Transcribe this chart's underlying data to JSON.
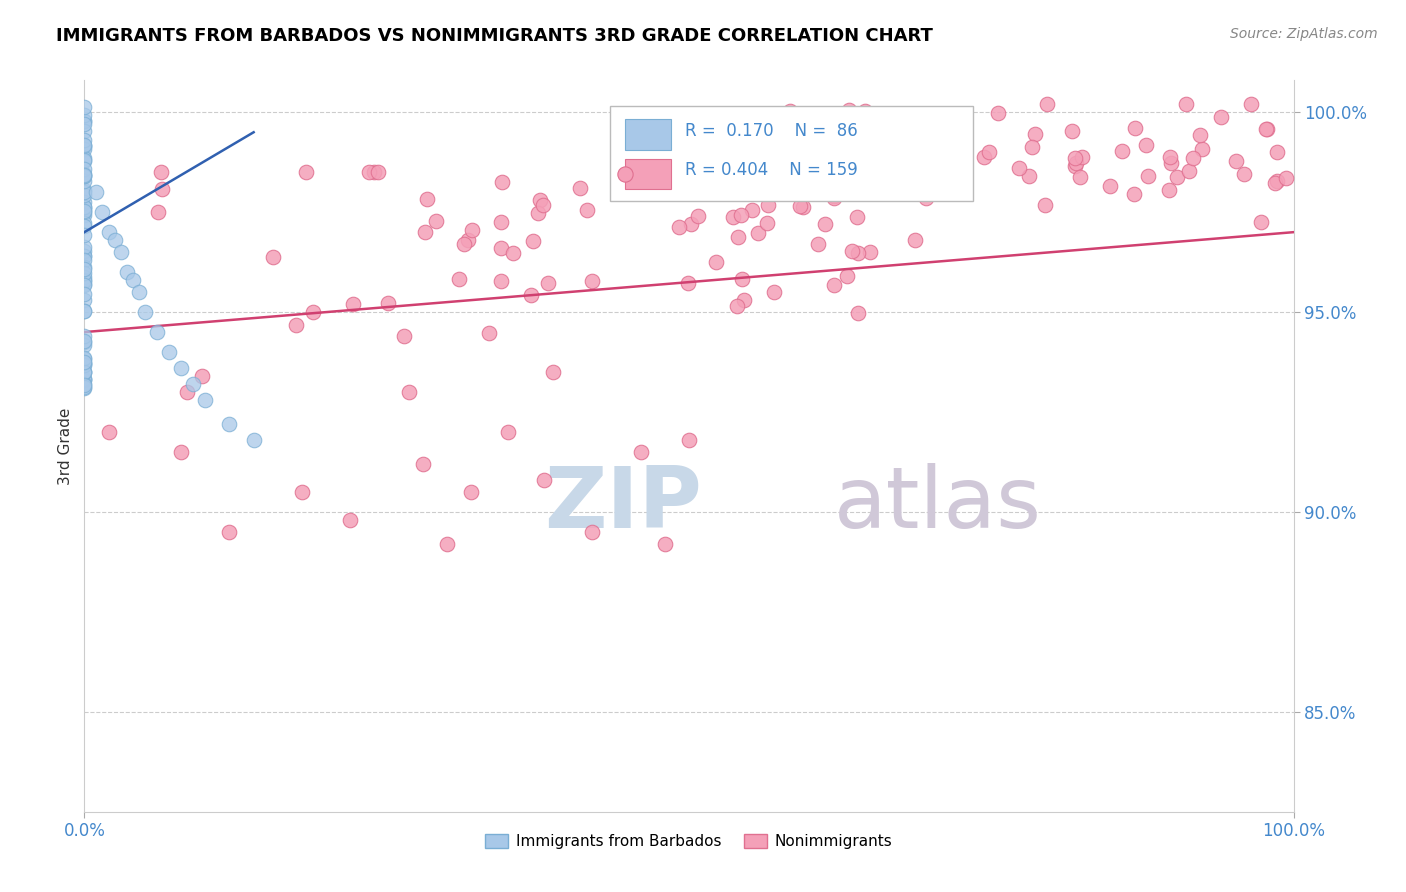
{
  "title": "IMMIGRANTS FROM BARBADOS VS NONIMMIGRANTS 3RD GRADE CORRELATION CHART",
  "source": "Source: ZipAtlas.com",
  "ylabel": "3rd Grade",
  "xlim": [
    0.0,
    1.0
  ],
  "ylim": [
    0.825,
    1.008
  ],
  "yticks": [
    0.85,
    0.9,
    0.95,
    1.0
  ],
  "ytick_labels": [
    "85.0%",
    "90.0%",
    "95.0%",
    "100.0%"
  ],
  "legend1_r": "0.170",
  "legend1_n": "86",
  "legend2_r": "0.404",
  "legend2_n": "159",
  "blue_color": "#a8c8e8",
  "blue_edge_color": "#7aaed4",
  "pink_color": "#f4a0b8",
  "pink_edge_color": "#e07090",
  "blue_line_color": "#3060b0",
  "pink_line_color": "#d04070",
  "grid_color": "#cccccc",
  "axis_tick_color": "#4488cc",
  "watermark_zip_color": "#c8d8e8",
  "watermark_atlas_color": "#d0c8d8",
  "seed": 42
}
